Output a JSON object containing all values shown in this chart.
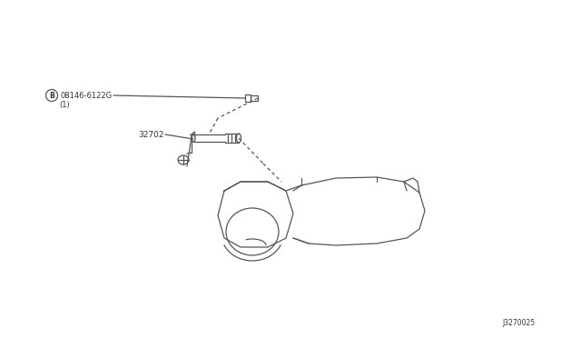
{
  "bg_color": "#ffffff",
  "line_color": "#555555",
  "text_color": "#333333",
  "part_b_label": "B",
  "part_number_label": "08146-6122G",
  "part_qty_label": "(1)",
  "part_32702_label": "32702",
  "diagram_id": "J3270025",
  "figsize": [
    6.4,
    3.72
  ],
  "dpi": 100
}
